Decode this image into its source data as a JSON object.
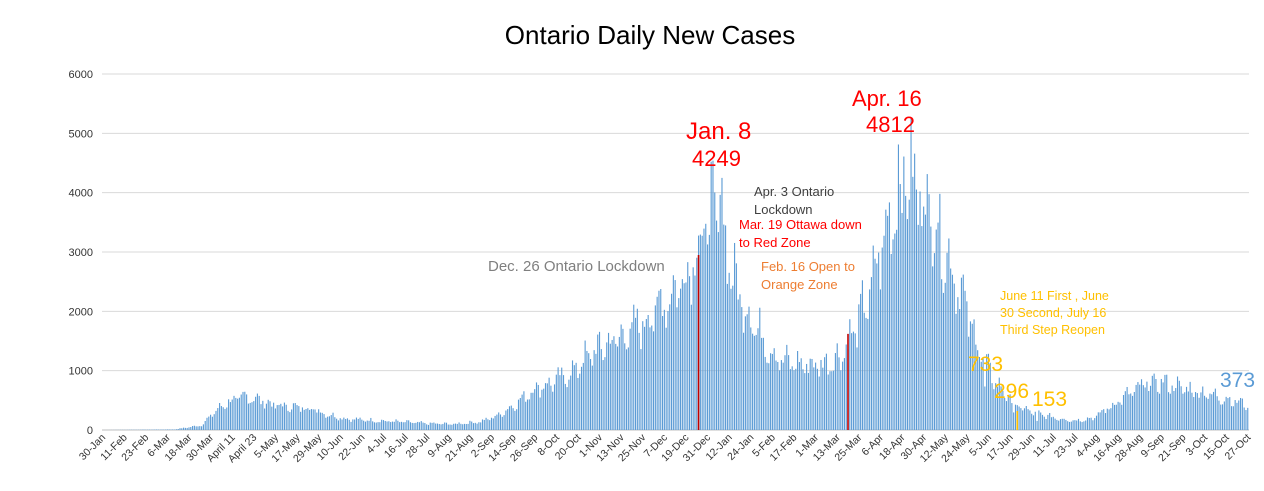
{
  "chart_data": {
    "type": "bar",
    "title": "Ontario Daily New Cases",
    "ylim": [
      0,
      6000
    ],
    "yticks": [
      0,
      1000,
      2000,
      3000,
      4000,
      5000,
      6000
    ],
    "grid": true,
    "legend": "none",
    "series_color": "#5b9bd5",
    "start_date": "2020-01-30",
    "num_days": 637,
    "xtick_labels": [
      "30-Jan",
      "11-Feb",
      "23-Feb",
      "6-Mar",
      "18-Mar",
      "30-Mar",
      "April 11",
      "April 23",
      "5-May",
      "17-May",
      "29-May",
      "10-Jun",
      "22-Jun",
      "4-Jul",
      "16-Jul",
      "28-Jul",
      "9-Aug",
      "21-Aug",
      "2-Sep",
      "14-Sep",
      "26-Sep",
      "8-Oct",
      "20-Oct",
      "1-Nov",
      "13-Nov",
      "25-Nov",
      "7-Dec",
      "19-Dec",
      "31-Dec",
      "12-Jan",
      "24-Jan",
      "5-Feb",
      "17-Feb",
      "1-Mar",
      "13-Mar",
      "25-Mar",
      "6-Apr",
      "18-Apr",
      "30-Apr",
      "12-May",
      "24-May",
      "5-Jun",
      "17-Jun",
      "29-Jun",
      "11-Jul",
      "23-Jul",
      "4-Aug",
      "16-Aug",
      "28-Aug",
      "9-Sep",
      "21-Sep",
      "3-Oct",
      "15-Oct",
      "27-Oct"
    ],
    "trend_points": [
      [
        0,
        0
      ],
      [
        40,
        10
      ],
      [
        55,
        80
      ],
      [
        62,
        300
      ],
      [
        70,
        480
      ],
      [
        80,
        560
      ],
      [
        85,
        530
      ],
      [
        95,
        420
      ],
      [
        108,
        380
      ],
      [
        115,
        380
      ],
      [
        125,
        260
      ],
      [
        135,
        190
      ],
      [
        150,
        160
      ],
      [
        165,
        140
      ],
      [
        180,
        110
      ],
      [
        195,
        100
      ],
      [
        210,
        140
      ],
      [
        220,
        250
      ],
      [
        230,
        450
      ],
      [
        240,
        700
      ],
      [
        250,
        800
      ],
      [
        260,
        950
      ],
      [
        270,
        1250
      ],
      [
        280,
        1450
      ],
      [
        290,
        1600
      ],
      [
        300,
        1800
      ],
      [
        310,
        2100
      ],
      [
        318,
        2350
      ],
      [
        325,
        2700
      ],
      [
        332,
        3200
      ],
      [
        340,
        3800
      ],
      [
        345,
        3300
      ],
      [
        350,
        2600
      ],
      [
        355,
        2200
      ],
      [
        362,
        1800
      ],
      [
        370,
        1400
      ],
      [
        378,
        1150
      ],
      [
        390,
        1100
      ],
      [
        400,
        1100
      ],
      [
        410,
        1250
      ],
      [
        418,
        1700
      ],
      [
        425,
        2200
      ],
      [
        432,
        3000
      ],
      [
        440,
        3800
      ],
      [
        446,
        4300
      ],
      [
        452,
        4100
      ],
      [
        460,
        3700
      ],
      [
        468,
        3000
      ],
      [
        476,
        2400
      ],
      [
        484,
        1600
      ],
      [
        492,
        1000
      ],
      [
        500,
        650
      ],
      [
        508,
        400
      ],
      [
        518,
        280
      ],
      [
        530,
        200
      ],
      [
        540,
        160
      ],
      [
        550,
        200
      ],
      [
        560,
        400
      ],
      [
        570,
        600
      ],
      [
        580,
        780
      ],
      [
        590,
        790
      ],
      [
        600,
        700
      ],
      [
        610,
        640
      ],
      [
        620,
        560
      ],
      [
        630,
        480
      ],
      [
        636,
        420
      ]
    ],
    "key_values": [
      {
        "day": 344,
        "value": 4249
      },
      {
        "day": 442,
        "value": 4812
      },
      {
        "day": 490,
        "value": 733
      },
      {
        "day": 506,
        "value": 296
      },
      {
        "day": 519,
        "value": 153
      },
      {
        "day": 636,
        "value": 373
      }
    ],
    "event_lines": [
      {
        "day": 331,
        "value": 2950,
        "color": "#c00000"
      },
      {
        "day": 414,
        "value": 1620,
        "color": "#c00000"
      },
      {
        "day": 508,
        "value": 320,
        "color": "#ffc000"
      }
    ],
    "annotations": [
      {
        "id": "jan8-date",
        "text": "Jan. 8",
        "color": "#ff0000"
      },
      {
        "id": "jan8-value",
        "text": "4249",
        "color": "#ff0000"
      },
      {
        "id": "apr16-date",
        "text": "Apr. 16",
        "color": "#ff0000"
      },
      {
        "id": "apr16-value",
        "text": "4812",
        "color": "#ff0000"
      },
      {
        "id": "dec26",
        "text": "Dec. 26 Ontario Lockdown",
        "color": "#7f7f7f"
      },
      {
        "id": "apr3",
        "text": "Apr. 3 Ontario\nLockdown",
        "color": "#404040"
      },
      {
        "id": "mar19",
        "text": "Mar. 19 Ottawa down\nto Red Zone",
        "color": "#ff0000"
      },
      {
        "id": "feb16",
        "text": "Feb. 16 Open to\nOrange Zone",
        "color": "#ed7d31"
      },
      {
        "id": "june11",
        "text": "June 11 First , June\n30 Second, July 16\nThird Step Reopen",
        "color": "#ffc000"
      },
      {
        "id": "v733",
        "text": "733",
        "color": "#ffc000"
      },
      {
        "id": "v296",
        "text": "296",
        "color": "#ffc000"
      },
      {
        "id": "v153",
        "text": "153",
        "color": "#ffc000"
      },
      {
        "id": "v373",
        "text": "373",
        "color": "#5b9bd5"
      }
    ]
  }
}
